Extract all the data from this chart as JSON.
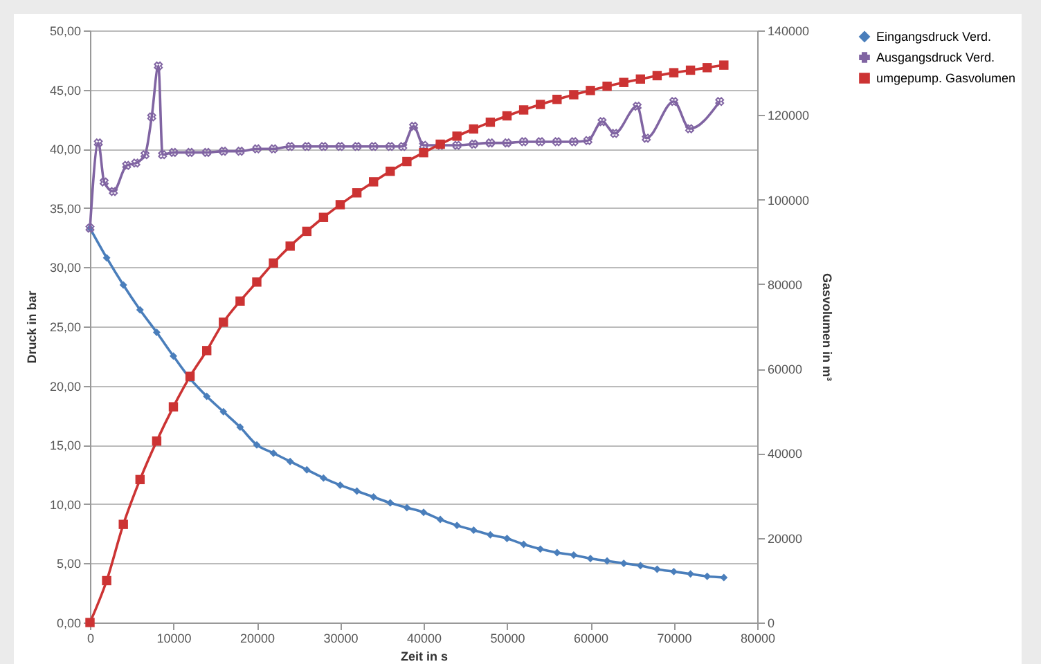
{
  "chart_data": {
    "type": "line",
    "xlabel": "Zeit in s",
    "ylabel": "Druck in bar",
    "y2label": "Gasvolumen  in m³",
    "xlim": [
      0,
      80000
    ],
    "xticks": [
      0,
      10000,
      20000,
      30000,
      40000,
      50000,
      60000,
      70000,
      80000
    ],
    "ylim": [
      0,
      50
    ],
    "yticks": [
      {
        "value": 0,
        "label": "0,00"
      },
      {
        "value": 5,
        "label": "5,00"
      },
      {
        "value": 10,
        "label": "10,00"
      },
      {
        "value": 15,
        "label": "15,00"
      },
      {
        "value": 20,
        "label": "20,00"
      },
      {
        "value": 25,
        "label": "25,00"
      },
      {
        "value": 30,
        "label": "30,00"
      },
      {
        "value": 35,
        "label": "35,00"
      },
      {
        "value": 40,
        "label": "40,00"
      },
      {
        "value": 45,
        "label": "45,00"
      },
      {
        "value": 50,
        "label": "50,00"
      }
    ],
    "y2lim": [
      0,
      140000
    ],
    "y2ticks": [
      0,
      20000,
      40000,
      60000,
      80000,
      100000,
      120000,
      140000
    ],
    "grid": "y",
    "legend": "right",
    "series": [
      {
        "name": "Eingangsdruck Verd.",
        "color": "#4a7ebb",
        "marker": "diamond",
        "x": [
          0,
          2000,
          4000,
          6000,
          8000,
          10000,
          12000,
          14000,
          16000,
          18000,
          20000,
          22000,
          24000,
          26000,
          28000,
          30000,
          32000,
          34000,
          36000,
          38000,
          40000,
          42000,
          44000,
          46000,
          48000,
          50000,
          52000,
          54000,
          56000,
          58000,
          60000,
          62000,
          64000,
          66000,
          68000,
          70000,
          72000,
          74000,
          76000
        ],
        "values": [
          33.3,
          30.8,
          28.5,
          26.4,
          24.5,
          22.5,
          20.6,
          19.1,
          17.8,
          16.5,
          15.0,
          14.3,
          13.6,
          12.9,
          12.2,
          11.6,
          11.1,
          10.6,
          10.1,
          9.7,
          9.3,
          8.7,
          8.2,
          7.8,
          7.4,
          7.1,
          6.6,
          6.2,
          5.9,
          5.7,
          5.4,
          5.2,
          5.0,
          4.8,
          4.5,
          4.3,
          4.1,
          3.9,
          3.8
        ]
      },
      {
        "name": "Ausgangsdruck Verd.",
        "color": "#8064a2",
        "marker": "cross",
        "x": [
          0,
          1000,
          1700,
          2800,
          4400,
          5500,
          6600,
          7400,
          8200,
          8700,
          10000,
          12000,
          14000,
          16000,
          18000,
          20000,
          22000,
          24000,
          26000,
          28000,
          30000,
          32000,
          34000,
          36000,
          37500,
          38800,
          40000,
          42000,
          44000,
          46000,
          48000,
          50000,
          52000,
          54000,
          56000,
          58000,
          59700,
          61400,
          62900,
          65600,
          66700,
          70000,
          71900,
          75500
        ],
        "values": [
          33.3,
          40.5,
          37.2,
          36.4,
          38.6,
          38.8,
          39.5,
          42.7,
          47.0,
          39.5,
          39.7,
          39.7,
          39.7,
          39.8,
          39.8,
          40.0,
          40.0,
          40.2,
          40.2,
          40.2,
          40.2,
          40.2,
          40.2,
          40.2,
          40.2,
          41.9,
          40.3,
          40.3,
          40.3,
          40.4,
          40.5,
          40.5,
          40.6,
          40.6,
          40.6,
          40.6,
          40.7,
          42.3,
          41.3,
          43.6,
          40.9,
          44.0,
          41.7,
          44.0
        ]
      },
      {
        "name": "umgepump. Gasvolumen",
        "color": "#cc3333",
        "marker": "square",
        "axis": "y2",
        "x": [
          0,
          2000,
          4000,
          6000,
          8000,
          10000,
          12000,
          14000,
          16000,
          18000,
          20000,
          22000,
          24000,
          26000,
          28000,
          30000,
          32000,
          34000,
          36000,
          38000,
          40000,
          42000,
          44000,
          46000,
          48000,
          50000,
          52000,
          54000,
          56000,
          58000,
          60000,
          62000,
          64000,
          66000,
          68000,
          70000,
          72000,
          74000,
          76000
        ],
        "values": [
          0,
          9900,
          23200,
          33800,
          42900,
          51000,
          58200,
          64300,
          71000,
          76000,
          80500,
          85000,
          89000,
          92500,
          95800,
          98800,
          101600,
          104200,
          106700,
          109000,
          111100,
          113100,
          115000,
          116700,
          118300,
          119800,
          121200,
          122500,
          123700,
          124800,
          125800,
          126800,
          127700,
          128500,
          129300,
          130000,
          130600,
          131200,
          131800
        ]
      }
    ]
  }
}
